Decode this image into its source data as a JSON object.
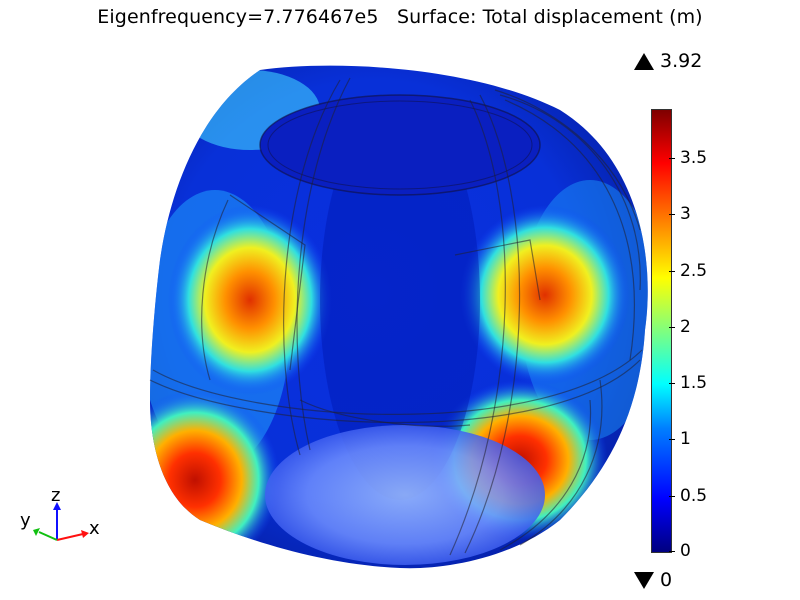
{
  "title": "Eigenfrequency=7.776467e5   Surface: Total displacement (m)",
  "colorbar": {
    "max_label": "3.92",
    "min_label": "0",
    "ticks": [
      "3.5",
      "3",
      "2.5",
      "2",
      "1.5",
      "1",
      "0.5",
      "0"
    ]
  },
  "axes_triad": {
    "x": "x",
    "y": "y",
    "z": "z"
  },
  "colors": {
    "low": "#00007f",
    "mid": "#ffff00",
    "high": "#7f0000"
  }
}
